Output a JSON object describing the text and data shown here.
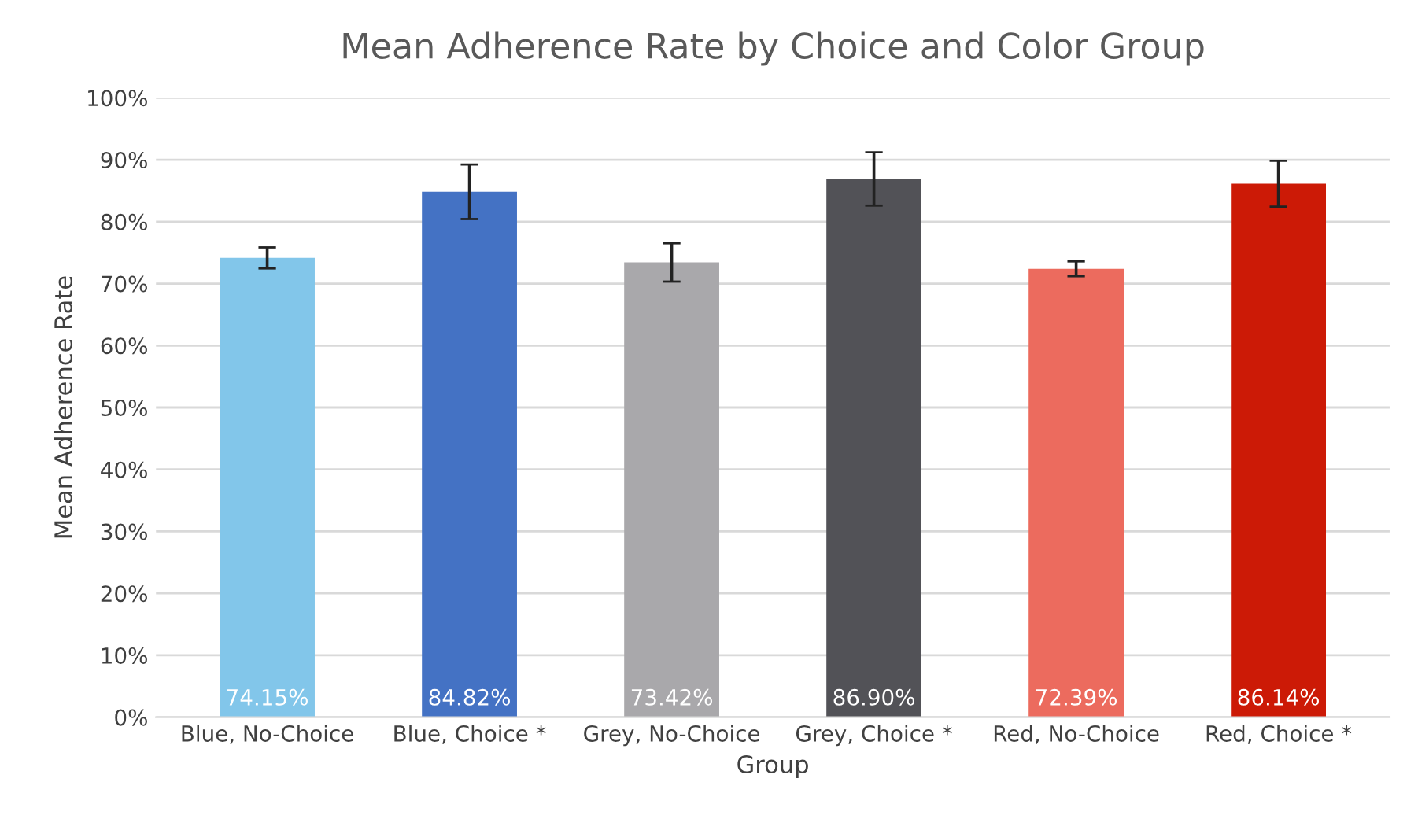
{
  "chart_data": {
    "type": "bar",
    "title": "Mean Adherence Rate by Choice and Color Group",
    "xlabel": "Group",
    "ylabel": "Mean Adherence Rate",
    "categories": [
      "Blue, No-Choice",
      "Blue, Choice *",
      "Grey, No-Choice",
      "Grey, Choice *",
      "Red, No-Choice",
      "Red, Choice *"
    ],
    "values": [
      74.15,
      84.82,
      73.42,
      86.9,
      72.39,
      86.14
    ],
    "colors": [
      "#82c6ea",
      "#4472c4",
      "#a9a8ab",
      "#525257",
      "#ec6b5e",
      "#cc1a06"
    ],
    "errors": [
      1.7,
      4.4,
      3.1,
      4.3,
      1.2,
      3.7
    ],
    "value_labels": [
      "74.15%",
      "84.82%",
      "73.42%",
      "86.90%",
      "72.39%",
      "86.14%"
    ],
    "ylim": [
      0,
      100
    ],
    "yticks": [
      {
        "value": 0,
        "label": "0%"
      },
      {
        "value": 10,
        "label": "10%"
      },
      {
        "value": 20,
        "label": "20%"
      },
      {
        "value": 30,
        "label": "30%"
      },
      {
        "value": 40,
        "label": "40%"
      },
      {
        "value": 50,
        "label": "50%"
      },
      {
        "value": 60,
        "label": "60%"
      },
      {
        "value": 70,
        "label": "70%"
      },
      {
        "value": 80,
        "label": "80%"
      },
      {
        "value": 90,
        "label": "90%"
      },
      {
        "value": 100,
        "label": "100%"
      }
    ],
    "grid": "y"
  }
}
